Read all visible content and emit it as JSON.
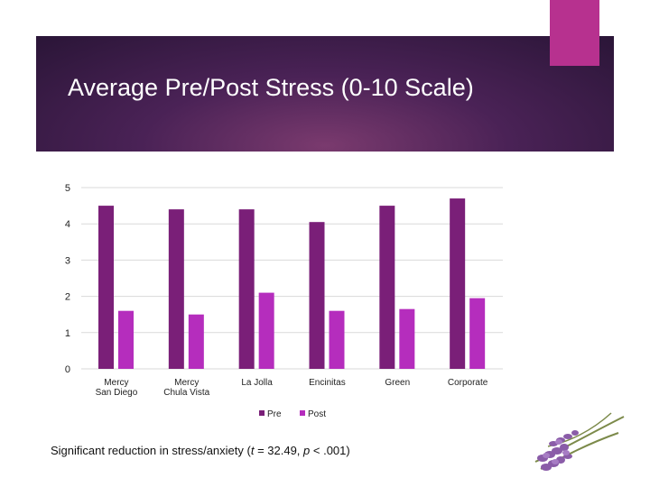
{
  "slide": {
    "title": "Average Pre/Post Stress (0-10 Scale)",
    "footnote_prefix": "Significant reduction in stress/anxiety (",
    "footnote_t": "t",
    "footnote_mid": " = 32.49, ",
    "footnote_p": "p",
    "footnote_suffix": " < .001)"
  },
  "colors": {
    "banner": "#3a1d47",
    "accent": "#b7318f",
    "pre": "#7a1f78",
    "post": "#b52dbd",
    "grid": "#d9d9d9"
  },
  "chart_data": {
    "type": "bar",
    "categories": [
      [
        "Mercy",
        "San Diego"
      ],
      [
        "Mercy",
        "Chula Vista"
      ],
      [
        "La Jolla"
      ],
      [
        "Encinitas"
      ],
      [
        "Green"
      ],
      [
        "Corporate"
      ]
    ],
    "series": [
      {
        "name": "Pre",
        "values": [
          4.5,
          4.4,
          4.4,
          4.05,
          4.5,
          4.7
        ]
      },
      {
        "name": "Post",
        "values": [
          1.6,
          1.5,
          2.1,
          1.6,
          1.65,
          1.95
        ]
      }
    ],
    "yticks": [
      0,
      1,
      2,
      3,
      4,
      5
    ],
    "ylim": [
      0,
      5
    ],
    "title": "",
    "xlabel": "",
    "ylabel": "",
    "legend": "bottom-center",
    "grid": true
  }
}
